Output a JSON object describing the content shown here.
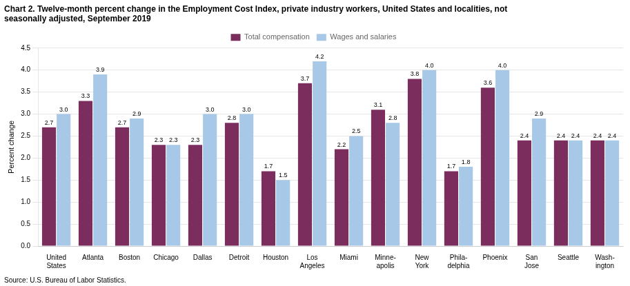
{
  "chart_data": {
    "type": "bar",
    "title": "Chart 2. Twelve-month percent change in the Employment Cost Index, private industry workers, United States and localities, not\nseasonally adjusted, September 2019",
    "ylabel": "Percent change",
    "annotations": [
      "Source: U.S. Bureau of Labor Statistics."
    ],
    "categories": [
      "United\nStates",
      "Atlanta",
      "Boston",
      "Chicago",
      "Dallas",
      "Detroit",
      "Houston",
      "Los\nAngeles",
      "Miami",
      "Minne-\napolis",
      "New\nYork",
      "Phila-\ndelphia",
      "Phoenix",
      "San\nJose",
      "Seattle",
      "Wash-\nington"
    ],
    "series": [
      {
        "name": "Total compensation",
        "color": "#7b2d5e",
        "values": [
          2.7,
          3.3,
          2.7,
          2.3,
          2.3,
          2.8,
          1.7,
          3.7,
          2.2,
          3.1,
          3.8,
          1.7,
          3.6,
          2.4,
          2.4,
          2.4
        ]
      },
      {
        "name": "Wages and salaries",
        "color": "#a8c8e8",
        "values": [
          3.0,
          3.9,
          2.9,
          2.3,
          3.0,
          3.0,
          1.5,
          4.2,
          2.5,
          2.8,
          4.0,
          1.8,
          4.0,
          2.9,
          2.4,
          2.4
        ],
        "value_labels": [
          "3.0",
          "3.9",
          "2.9",
          "2.3",
          "3.0",
          "3.0",
          "1.5",
          "4.2",
          "2.5",
          "2.8",
          "4.0",
          "1.8",
          "4.0",
          "2.9",
          "2.4",
          "2.4"
        ]
      }
    ],
    "ylim": [
      0,
      4.5
    ],
    "yticks": [
      {
        "value": 0,
        "label": "0.0"
      },
      0.5,
      {
        "value": 1,
        "label": "1.0"
      },
      1.5,
      {
        "value": 2,
        "label": "2.0"
      },
      2.5,
      {
        "value": 3,
        "label": "3.0"
      },
      3.5,
      {
        "value": 4,
        "label": "4.0"
      },
      4.5
    ],
    "grid": true,
    "legend": "top",
    "data_labels": true
  }
}
